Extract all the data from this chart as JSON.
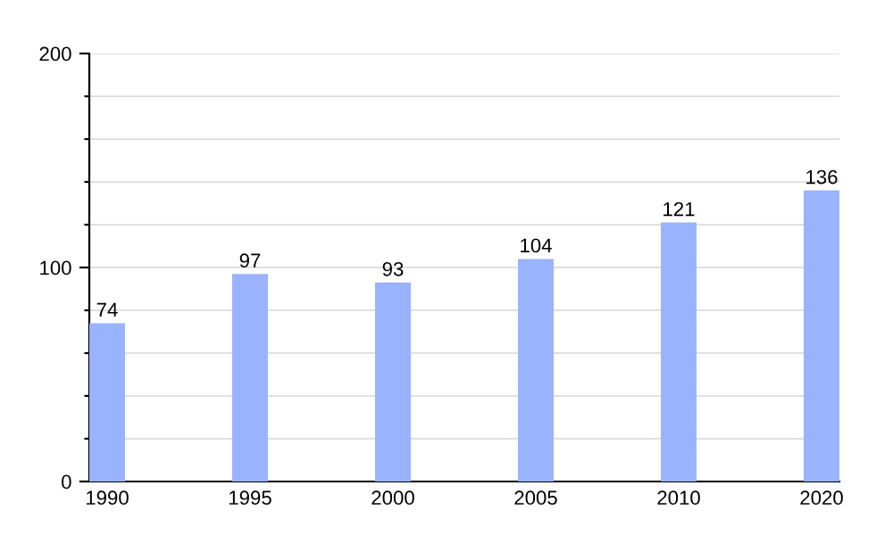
{
  "chart_data": {
    "type": "bar",
    "categories": [
      "1990",
      "1995",
      "2000",
      "2005",
      "2010",
      "2020"
    ],
    "values": [
      74,
      97,
      93,
      104,
      121,
      136
    ],
    "color": "#99b3ff",
    "ylim": [
      0,
      200
    ],
    "yticks": [
      0,
      {
        "value": 20,
        "label": null
      },
      {
        "value": 40,
        "label": null
      },
      {
        "value": 60,
        "label": null
      },
      {
        "value": 80,
        "label": null
      },
      100,
      {
        "value": 120,
        "label": null
      },
      {
        "value": 140,
        "label": null
      },
      {
        "value": 160,
        "label": null
      },
      {
        "value": 180,
        "label": null
      },
      200
    ],
    "grid": "y",
    "data_labels": true
  }
}
